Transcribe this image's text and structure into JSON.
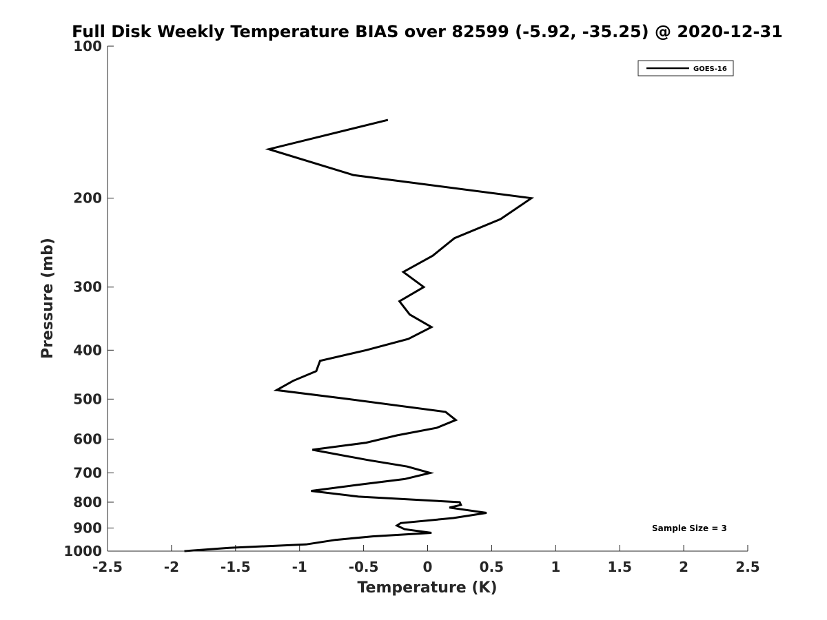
{
  "chart_data": {
    "type": "line",
    "title": "Full Disk Weekly Temperature BIAS over 82599 (-5.92, -35.25) @ 2020-12-31",
    "xlabel": "Temperature (K)",
    "ylabel": "Pressure (mb)",
    "xlim": [
      -2.5,
      2.5
    ],
    "ylim": [
      100,
      1000
    ],
    "y_scale": "log",
    "y_reversed": true,
    "x_ticks": [
      -2.5,
      -2,
      -1.5,
      -1,
      -0.5,
      0,
      0.5,
      1,
      1.5,
      2,
      2.5
    ],
    "x_tick_labels": [
      "-2.5",
      "-2",
      "-1.5",
      "-1",
      "-0.5",
      "0",
      "0.5",
      "1",
      "1.5",
      "2",
      "2.5"
    ],
    "y_ticks": [
      100,
      200,
      300,
      400,
      500,
      600,
      700,
      800,
      900,
      1000
    ],
    "y_tick_labels": [
      "100",
      "200",
      "300",
      "400",
      "500",
      "600",
      "700",
      "800",
      "900",
      "1000"
    ],
    "grid": false,
    "legend_position": "top-right",
    "annotation": "Sample Size = 3",
    "series": [
      {
        "name": "GOES-16",
        "color": "#000000",
        "points": [
          {
            "t": -0.31,
            "p": 140
          },
          {
            "t": -1.24,
            "p": 160
          },
          {
            "t": -0.58,
            "p": 180
          },
          {
            "t": 0.81,
            "p": 200
          },
          {
            "t": 0.57,
            "p": 220
          },
          {
            "t": 0.21,
            "p": 240
          },
          {
            "t": 0.04,
            "p": 260
          },
          {
            "t": -0.19,
            "p": 280
          },
          {
            "t": -0.03,
            "p": 300
          },
          {
            "t": -0.22,
            "p": 320
          },
          {
            "t": -0.14,
            "p": 340
          },
          {
            "t": 0.03,
            "p": 360
          },
          {
            "t": -0.15,
            "p": 380
          },
          {
            "t": -0.48,
            "p": 400
          },
          {
            "t": -0.84,
            "p": 420
          },
          {
            "t": -0.87,
            "p": 440
          },
          {
            "t": -1.05,
            "p": 460
          },
          {
            "t": -1.18,
            "p": 480
          },
          {
            "t": -0.62,
            "p": 500
          },
          {
            "t": 0.14,
            "p": 530
          },
          {
            "t": 0.22,
            "p": 550
          },
          {
            "t": 0.07,
            "p": 570
          },
          {
            "t": -0.24,
            "p": 590
          },
          {
            "t": -0.48,
            "p": 610
          },
          {
            "t": -0.9,
            "p": 630
          },
          {
            "t": -0.47,
            "p": 660
          },
          {
            "t": -0.16,
            "p": 680
          },
          {
            "t": 0.02,
            "p": 700
          },
          {
            "t": -0.18,
            "p": 720
          },
          {
            "t": -0.56,
            "p": 740
          },
          {
            "t": -0.91,
            "p": 760
          },
          {
            "t": -0.54,
            "p": 780
          },
          {
            "t": 0.25,
            "p": 800
          },
          {
            "t": 0.26,
            "p": 810
          },
          {
            "t": 0.17,
            "p": 820
          },
          {
            "t": 0.46,
            "p": 840
          },
          {
            "t": 0.2,
            "p": 860
          },
          {
            "t": -0.21,
            "p": 880
          },
          {
            "t": -0.24,
            "p": 890
          },
          {
            "t": -0.18,
            "p": 905
          },
          {
            "t": 0.03,
            "p": 920
          },
          {
            "t": -0.43,
            "p": 935
          },
          {
            "t": -0.72,
            "p": 950
          },
          {
            "t": -0.95,
            "p": 970
          },
          {
            "t": -1.55,
            "p": 985
          },
          {
            "t": -1.9,
            "p": 1000
          }
        ]
      }
    ]
  }
}
